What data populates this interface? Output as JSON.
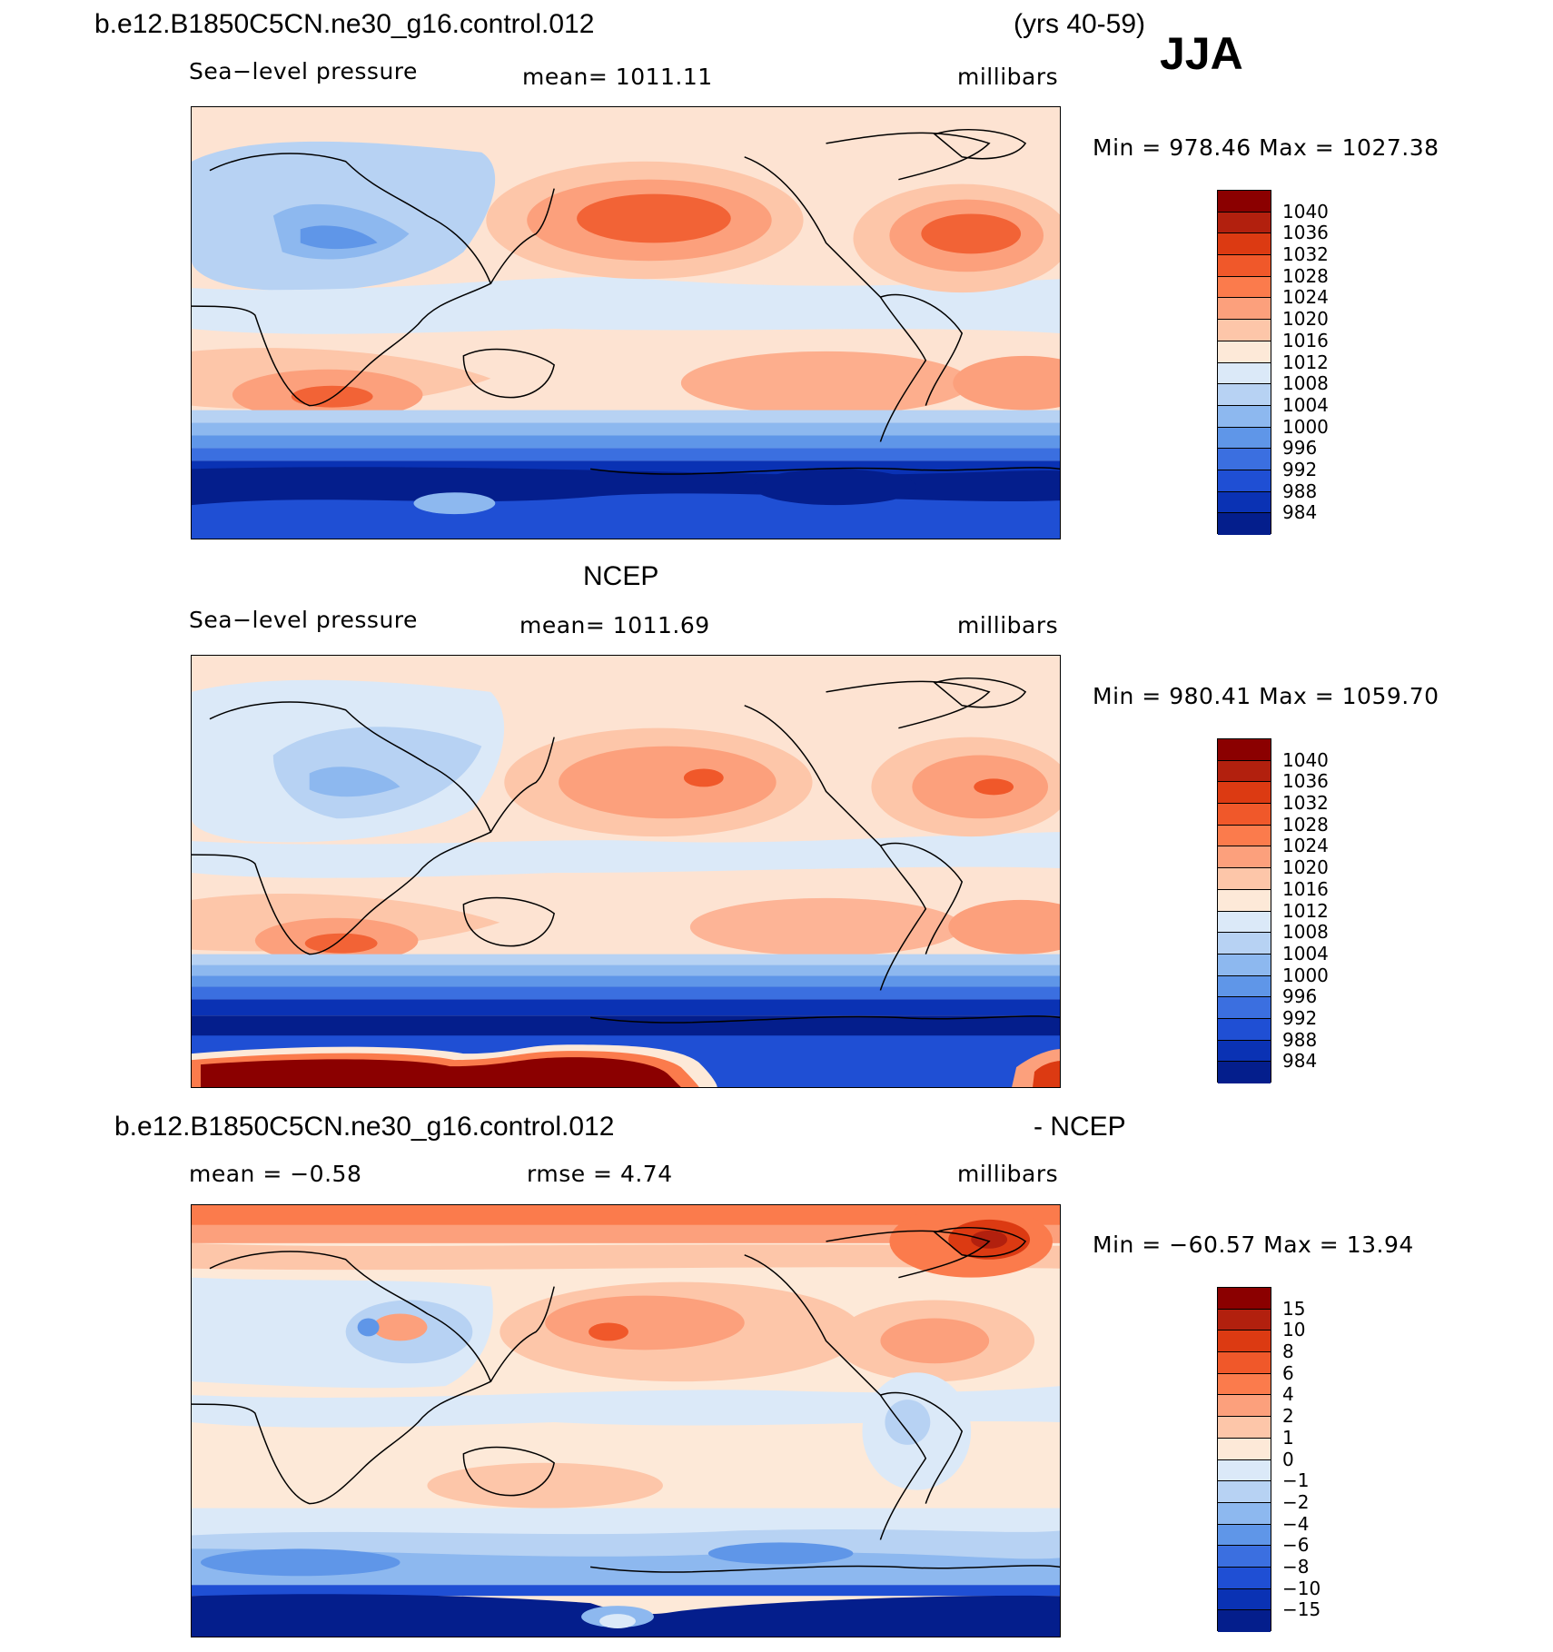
{
  "header": {
    "case_name": "b.e12.B1850C5CN.ne30_g16.control.012",
    "years": "(yrs 40-59)",
    "season": "JJA"
  },
  "panels": [
    {
      "title": "",
      "variable": "Sea−level pressure",
      "stat": "mean=  1011.11",
      "units": "millibars",
      "minmax": "Min  =  978.46  Max  =  1027.38",
      "colorbar": {
        "colors": [
          "#8b0000",
          "#b2200e",
          "#dc3a12",
          "#f0582a",
          "#fb7b4c",
          "#fca07c",
          "#fdc6a9",
          "#fde9d8",
          "#dbe9f8",
          "#b7d2f3",
          "#8db8ef",
          "#5f96e8",
          "#3b6fe0",
          "#1f4fd4",
          "#0a32b4",
          "#041e8c"
        ],
        "labels": [
          "1040",
          "1036",
          "1032",
          "1028",
          "1024",
          "1020",
          "1016",
          "1012",
          "1008",
          "1004",
          "1000",
          "996",
          "992",
          "988",
          "984"
        ]
      }
    },
    {
      "title": "NCEP",
      "variable": "Sea−level pressure",
      "stat": "mean=  1011.69",
      "units": "millibars",
      "minmax": "Min  =  980.41  Max  =  1059.70",
      "colorbar": {
        "colors": [
          "#8b0000",
          "#b2200e",
          "#dc3a12",
          "#f0582a",
          "#fb7b4c",
          "#fca07c",
          "#fdc6a9",
          "#fde9d8",
          "#dbe9f8",
          "#b7d2f3",
          "#8db8ef",
          "#5f96e8",
          "#3b6fe0",
          "#1f4fd4",
          "#0a32b4",
          "#041e8c"
        ],
        "labels": [
          "1040",
          "1036",
          "1032",
          "1028",
          "1024",
          "1020",
          "1016",
          "1012",
          "1008",
          "1004",
          "1000",
          "996",
          "992",
          "988",
          "984"
        ]
      }
    },
    {
      "title_left": "b.e12.B1850C5CN.ne30_g16.control.012",
      "title_right": "- NCEP",
      "stat_mean": "mean  =    −0.58",
      "stat_rmse": "rmse  =      4.74",
      "units": "millibars",
      "minmax": "Min  =  −60.57  Max  =    13.94",
      "colorbar": {
        "colors": [
          "#8b0000",
          "#b2200e",
          "#dc3a12",
          "#f0582a",
          "#fb7b4c",
          "#fca07c",
          "#fdc6a9",
          "#fde9d8",
          "#dbe9f8",
          "#b7d2f3",
          "#8db8ef",
          "#5f96e8",
          "#3b6fe0",
          "#1f4fd4",
          "#0a32b4",
          "#041e8c"
        ],
        "labels": [
          "15",
          "10",
          "8",
          "6",
          "4",
          "2",
          "1",
          "0",
          "−1",
          "−2",
          "−4",
          "−6",
          "−8",
          "−10",
          "−15"
        ]
      }
    }
  ]
}
